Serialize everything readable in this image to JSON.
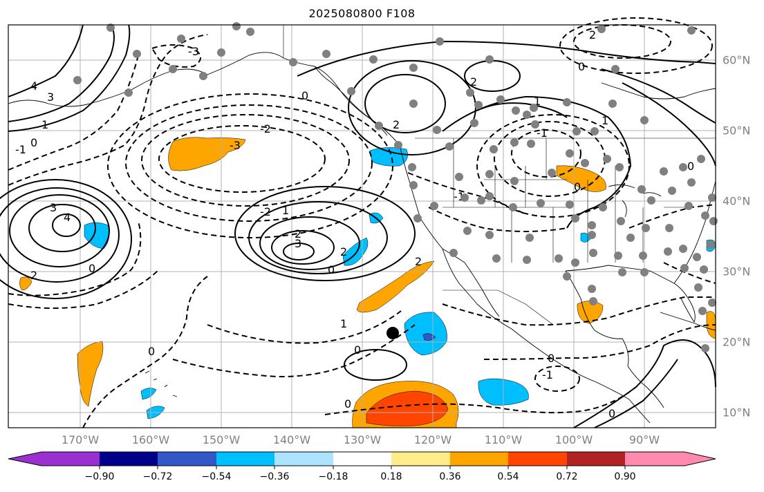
{
  "title": "2025080800 F108",
  "lon_labels": [
    "170°W",
    "160°W",
    "150°W",
    "140°W",
    "130°W",
    "120°W",
    "110°W",
    "100°W",
    "90°W"
  ],
  "lat_labels": [
    "60°N",
    "50°N",
    "40°N",
    "30°N",
    "20°N",
    "10°N"
  ],
  "colorbar": {
    "tick_labels": [
      "−0.90",
      "−0.72",
      "−0.54",
      "−0.36",
      "−0.18",
      "0.18",
      "0.36",
      "0.54",
      "0.72",
      "0.90"
    ],
    "colors": [
      "#9b30d0",
      "#00008b",
      "#3258c8",
      "#00bfff",
      "#aee3ff",
      "#ffffff",
      "#ffec8b",
      "#ffa500",
      "#ff4500",
      "#b22222",
      "#ff8ab0"
    ]
  },
  "contour_labels": [
    "3",
    "2",
    "4",
    "1",
    "0",
    "-1",
    "-2",
    "-3"
  ],
  "marker_colors": {
    "stations": "#808080",
    "storm": "#000000"
  }
}
